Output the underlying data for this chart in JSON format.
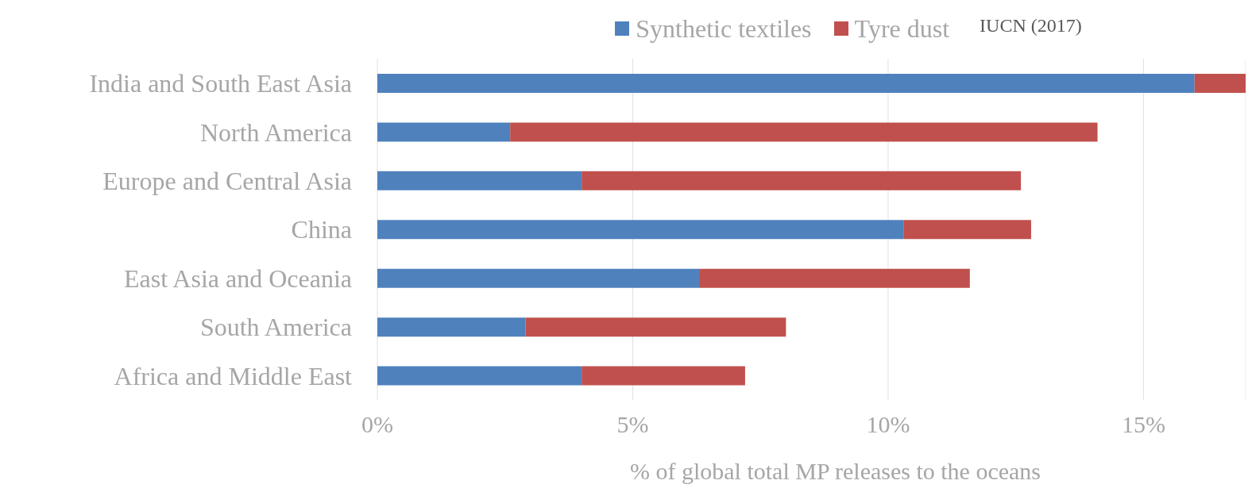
{
  "chart_data": {
    "type": "bar",
    "orientation": "horizontal",
    "stacked": true,
    "categories": [
      "India and South East Asia",
      "North America",
      "Europe and Central Asia",
      "China",
      "East Asia and Oceania",
      "South America",
      "Africa and Middle East"
    ],
    "series": [
      {
        "name": "Synthetic textiles",
        "color": "#4f81bd",
        "values": [
          16.0,
          2.6,
          4.0,
          10.3,
          6.3,
          2.9,
          4.0
        ]
      },
      {
        "name": "Tyre dust",
        "color": "#c0504d",
        "values": [
          1.0,
          11.5,
          8.6,
          2.5,
          5.3,
          5.1,
          3.2
        ]
      }
    ],
    "xlim": [
      0,
      17
    ],
    "xticks": [
      {
        "value": 0,
        "label": "0%"
      },
      {
        "value": 5,
        "label": "5%"
      },
      {
        "value": 10,
        "label": "10%"
      },
      {
        "value": 15,
        "label": "15%"
      }
    ],
    "xlabel": "% of global total MP releases to the oceans",
    "annotations": [
      "IUCN (2017)"
    ],
    "grid": "x",
    "legend": "top"
  }
}
